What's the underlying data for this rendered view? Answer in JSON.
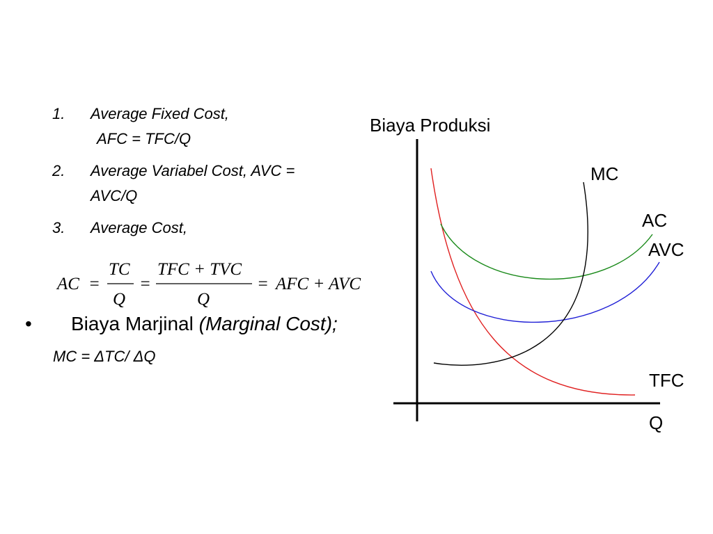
{
  "list": [
    {
      "num": "1.",
      "line1": "Average Fixed Cost,",
      "line2": "AFC = TFC/Q"
    },
    {
      "num": "2.",
      "line1": "Average Variabel Cost,     AVC =",
      "line2": "AVC/Q"
    },
    {
      "num": "3.",
      "line1": "Average Cost,",
      "line2": ""
    }
  ],
  "formula": {
    "lhs": "AC",
    "eq": "=",
    "frac1_num": "TC",
    "frac1_den": "Q",
    "frac2_num": "TFC + TVC",
    "frac2_den": "Q",
    "rhs": "AFC + AVC"
  },
  "bullet": {
    "dot": "•",
    "text": "Biaya Marjinal ",
    "italic": "(Marginal Cost);"
  },
  "mc_formula": "MC = ΔTC/ ΔQ",
  "graph": {
    "y_label": "Biaya Produksi",
    "x_label": "Q",
    "curves": [
      {
        "name": "MC",
        "color": "#000000"
      },
      {
        "name": "AC",
        "color": "#1a8a1a"
      },
      {
        "name": "AVC",
        "color": "#1f1fd6"
      },
      {
        "name": "TFC",
        "color": "#e02020"
      }
    ]
  }
}
